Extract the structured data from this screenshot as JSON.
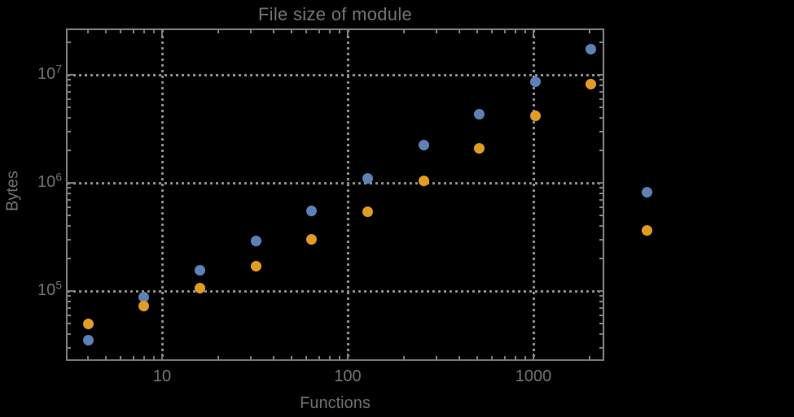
{
  "title": "File size of module",
  "colors": {
    "background": "#000000",
    "frame": "#7f7f7f",
    "grid": "#8c8c8c",
    "text": "#737373",
    "series_blue": "#5e81b5",
    "series_orange": "#e19c24"
  },
  "axes": {
    "x_label": "Functions",
    "y_label": "Bytes",
    "x_major_ticks": [
      {
        "value": 10,
        "label": "10"
      },
      {
        "value": 100,
        "label": "100"
      },
      {
        "value": 1000,
        "label": "1000"
      }
    ],
    "y_major_ticks": [
      {
        "value": 100000,
        "base": "10",
        "exp": "5"
      },
      {
        "value": 1000000,
        "base": "10",
        "exp": "6"
      },
      {
        "value": 10000000,
        "base": "10",
        "exp": "7"
      }
    ],
    "x_minor_ticks": [
      4,
      5,
      6,
      7,
      8,
      9,
      20,
      30,
      40,
      50,
      60,
      70,
      80,
      90,
      200,
      300,
      400,
      500,
      600,
      700,
      800,
      900,
      2000
    ],
    "y_minor_ticks": [
      30000,
      40000,
      50000,
      60000,
      70000,
      80000,
      90000,
      200000,
      300000,
      400000,
      500000,
      600000,
      700000,
      800000,
      900000,
      2000000,
      3000000,
      4000000,
      5000000,
      6000000,
      7000000,
      8000000,
      9000000,
      20000000
    ]
  },
  "chart_data": {
    "type": "scatter",
    "title": "File size of module",
    "xlabel": "Functions",
    "ylabel": "Bytes",
    "xscale": "log",
    "yscale": "log",
    "xlim": [
      3.1,
      2380
    ],
    "ylim": [
      23000,
      26000000
    ],
    "grid": true,
    "legend": "none",
    "x": [
      4,
      8,
      16,
      32,
      64,
      128,
      256,
      512,
      1024,
      2048,
      4096
    ],
    "series": [
      {
        "name": "series-1-blue",
        "color": "#5e81b5",
        "values": [
          35000,
          88000,
          155000,
          290000,
          555000,
          1100000,
          2220000,
          4350000,
          8700000,
          17400000,
          825000
        ]
      },
      {
        "name": "series-2-orange",
        "color": "#e19c24",
        "values": [
          50000,
          72000,
          107000,
          170000,
          298000,
          545000,
          1050000,
          2070000,
          4150000,
          8130000,
          365000
        ]
      }
    ]
  }
}
